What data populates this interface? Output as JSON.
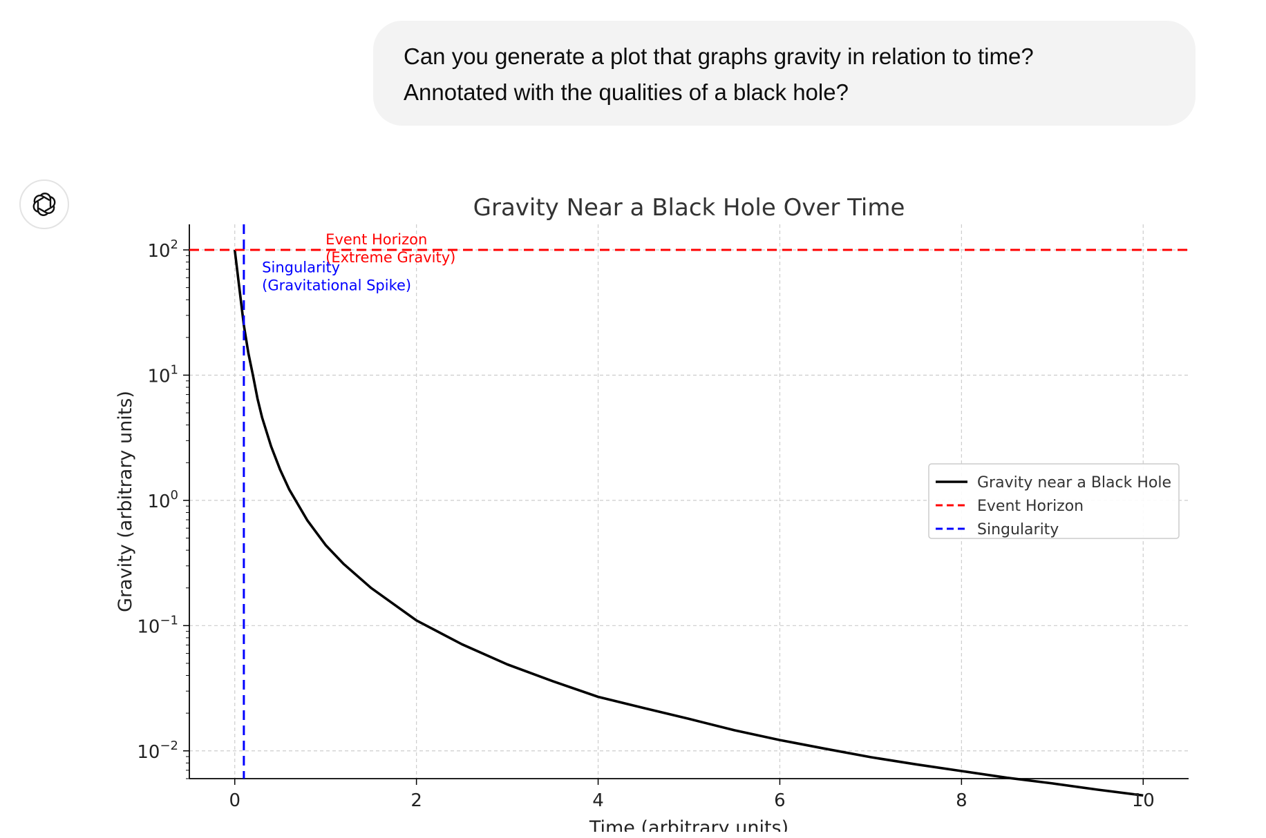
{
  "conversation": {
    "user_message": {
      "line1": "Can you generate a plot that graphs gravity in relation to time?",
      "line2": "Annotated with the qualities of a black hole?"
    },
    "assistant_avatar_icon": "openai-logo-icon"
  },
  "chart_data": {
    "type": "line",
    "title": "Gravity Near a Black Hole Over Time",
    "xlabel": "Time (arbitrary units)",
    "ylabel": "Gravity (arbitrary units)",
    "xlim": [
      -0.5,
      10.5
    ],
    "ylim": [
      0.006,
      160
    ],
    "yscale": "log",
    "grid": true,
    "legend_position": "center-right",
    "x_ticks": [
      "0",
      "2",
      "4",
      "6",
      "8",
      "10"
    ],
    "y_ticks": [
      {
        "base": "10",
        "exp": "−2"
      },
      {
        "base": "10",
        "exp": "−1"
      },
      {
        "base": "10",
        "exp": "0"
      },
      {
        "base": "10",
        "exp": "1"
      },
      {
        "base": "10",
        "exp": "2"
      }
    ],
    "series": [
      {
        "name": "Gravity near a Black Hole",
        "color": "#000000",
        "style": "solid",
        "x": [
          0,
          0.05,
          0.1,
          0.15,
          0.2,
          0.25,
          0.3,
          0.4,
          0.5,
          0.6,
          0.8,
          1,
          1.2,
          1.5,
          2,
          2.5,
          3,
          3.5,
          4,
          4.5,
          5,
          5.5,
          6,
          6.5,
          7,
          7.5,
          8,
          8.5,
          9,
          9.5,
          10
        ],
        "y": [
          100,
          50,
          25,
          15,
          10,
          6.5,
          4.6,
          2.7,
          1.75,
          1.22,
          0.69,
          0.44,
          0.31,
          0.2,
          0.11,
          0.071,
          0.049,
          0.036,
          0.027,
          0.022,
          0.018,
          0.0146,
          0.0122,
          0.0104,
          0.0089,
          0.0078,
          0.0069,
          0.0061,
          0.0055,
          0.0049,
          0.0044
        ]
      },
      {
        "name": "Event Horizon",
        "color": "#ff0000",
        "style": "dashed",
        "orientation": "horizontal",
        "y_value": 100
      },
      {
        "name": "Singularity",
        "color": "#0000ff",
        "style": "dashed",
        "orientation": "vertical",
        "x_value": 0.1
      }
    ],
    "annotations": [
      {
        "lines": [
          "Event Horizon",
          "(Extreme Gravity)"
        ],
        "x": 1,
        "y": 100,
        "color": "#ff0000"
      },
      {
        "lines": [
          "Singularity",
          "(Gravitational Spike)"
        ],
        "x": 0.3,
        "y": 60,
        "color": "#0000ff"
      }
    ]
  }
}
